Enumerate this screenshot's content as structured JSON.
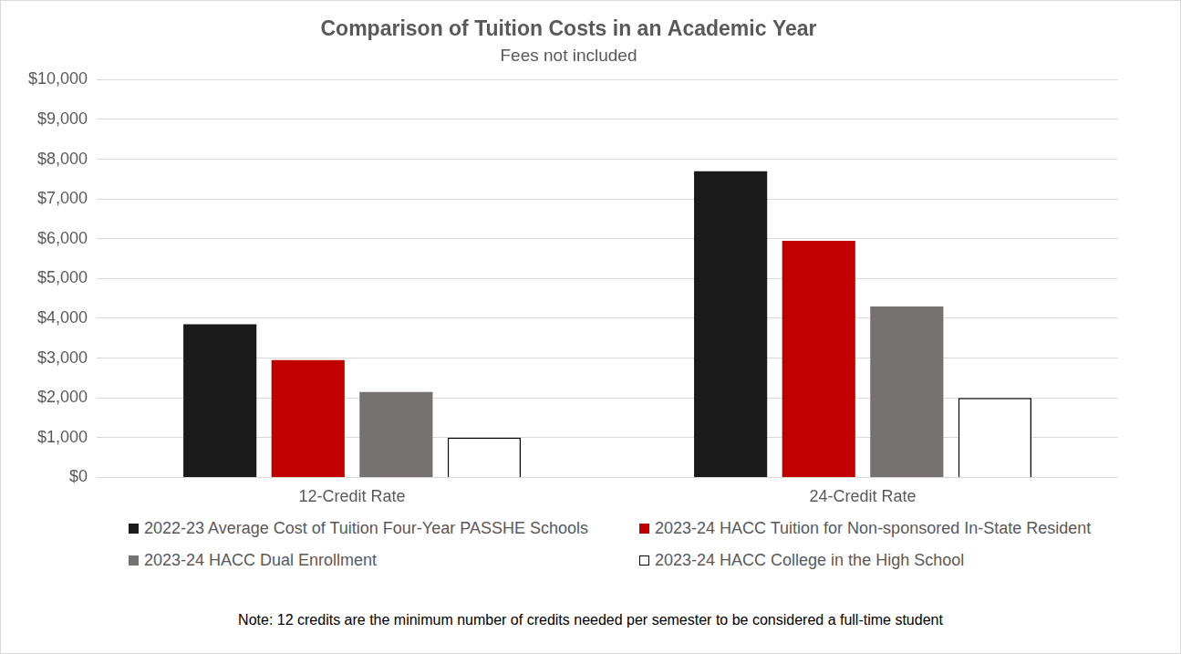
{
  "chart_data": {
    "type": "bar",
    "title": "Comparison of Tuition Costs in an Academic Year",
    "subtitle": "Fees not included",
    "note": "Note: 12 credits are the minimum number of credits needed per semester to be considered a full-time student",
    "categories": [
      "12-Credit Rate",
      "24-Credit Rate"
    ],
    "series": [
      {
        "name": "2022-23 Average Cost of Tuition Four-Year PASSHE Schools",
        "color": "#1a1a1a",
        "values": [
          3850,
          7700
        ]
      },
      {
        "name": "2023-24 HACC Tuition for Non-sponsored In-State Resident",
        "color": "#c00000",
        "values": [
          2950,
          5950
        ]
      },
      {
        "name": "2023-24 HACC Dual Enrollment",
        "color": "#767171",
        "values": [
          2150,
          4300
        ]
      },
      {
        "name": "2023-24 HACC College in the High School",
        "color": "#ffffff",
        "values": [
          1000,
          2000
        ]
      }
    ],
    "ylim": [
      0,
      10000
    ],
    "yticks": [
      {
        "value": 0,
        "label": "$0"
      },
      {
        "value": 1000,
        "label": "$1,000"
      },
      {
        "value": 2000,
        "label": "$2,000"
      },
      {
        "value": 3000,
        "label": "$3,000"
      },
      {
        "value": 4000,
        "label": "$4,000"
      },
      {
        "value": 5000,
        "label": "$5,000"
      },
      {
        "value": 6000,
        "label": "$6,000"
      },
      {
        "value": 7000,
        "label": "$7,000"
      },
      {
        "value": 8000,
        "label": "$8,000"
      },
      {
        "value": 9000,
        "label": "$9,000"
      },
      {
        "value": 10000,
        "label": "$10,000"
      }
    ],
    "grid": true,
    "legend": "bottom"
  }
}
